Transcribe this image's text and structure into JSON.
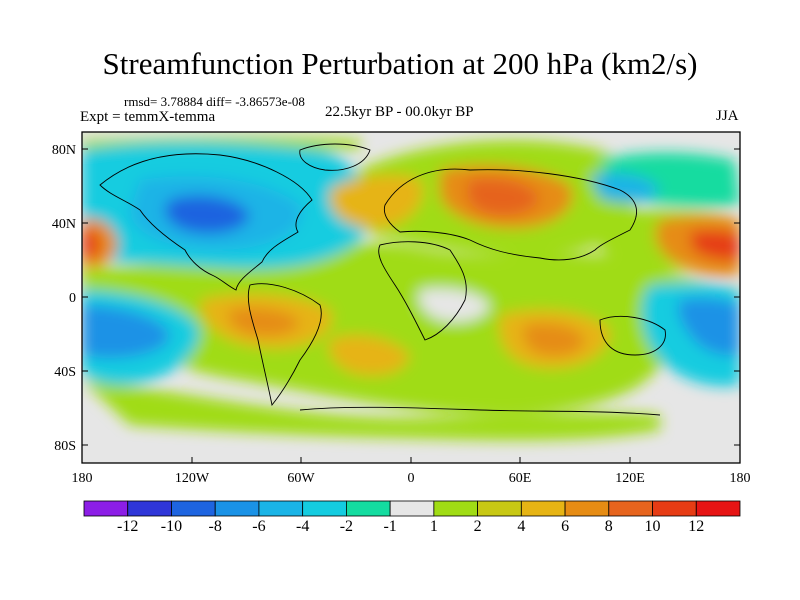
{
  "title": "Streamfunction Perturbation at 200 hPa (km2/s)",
  "stats": {
    "rmsd_label": "rmsd=",
    "rmsd": "3.78884",
    "diff_label": "diff=",
    "diff": "-3.86573e-08"
  },
  "experiment": "Expt = temmX-temma",
  "period": "22.5kyr BP - 00.0kyr BP",
  "season": "JJA",
  "axes": {
    "lat_ticks": [
      "80N",
      "40N",
      "0",
      "40S",
      "80S"
    ],
    "lon_ticks": [
      "180",
      "120W",
      "60W",
      "0",
      "60E",
      "120E",
      "180"
    ]
  },
  "colorbar": {
    "colors": [
      "#8c1ee6",
      "#2f36d8",
      "#1e64e0",
      "#1a92e6",
      "#1ab4e6",
      "#14cce0",
      "#14dca0",
      "#e6e6e6",
      "#a0dc14",
      "#c8c814",
      "#e6b414",
      "#e68c14",
      "#e6641e",
      "#e63c14",
      "#e61414"
    ],
    "labels": [
      "-12",
      "-10",
      "-8",
      "-6",
      "-4",
      "-2",
      "-1",
      "1",
      "2",
      "4",
      "6",
      "8",
      "10",
      "12"
    ]
  }
}
